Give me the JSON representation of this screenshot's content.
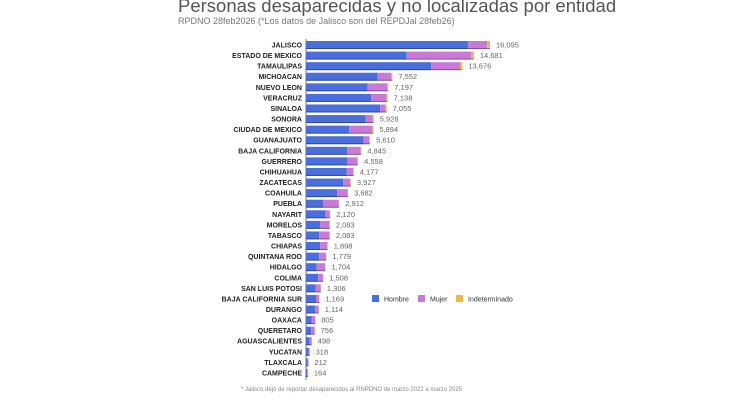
{
  "chart_data": {
    "type": "bar",
    "orientation": "horizontal",
    "stacked": true,
    "title": "Personas desaparecidas y no localizadas por entidad",
    "subtitle": "RPDNO 28feb2026 (*Los datos de Jalisco son del REPDJal 28feb26)",
    "footnote": "* Jalisco dejó de reportar desaparecidos al RNPDNO de marzo 2022 a marzo 2025",
    "legend_position": "right-middle",
    "xlim": [
      0,
      16095
    ],
    "categories": [
      "JALISCO",
      "ESTADO DE MEXICO",
      "TAMAULIPAS",
      "MICHOACAN",
      "NUEVO LEON",
      "VERACRUZ",
      "SINALOA",
      "SONORA",
      "CIUDAD DE MEXICO",
      "GUANAJUATO",
      "BAJA CALIFORNIA",
      "GUERRERO",
      "CHIHUAHUA",
      "ZACATECAS",
      "COAHUILA",
      "PUEBLA",
      "NAYARIT",
      "MORELOS",
      "TABASCO",
      "CHIAPAS",
      "QUINTANA ROO",
      "HIDALGO",
      "COLIMA",
      "SAN LUIS POTOSI",
      "BAJA CALIFORNIA SUR",
      "DURANGO",
      "OAXACA",
      "QUERETARO",
      "AGUASCALIENTES",
      "YUCATAN",
      "TLAXCALA",
      "CAMPECHE"
    ],
    "totals": [
      16095,
      14681,
      13676,
      7552,
      7197,
      7138,
      7055,
      5928,
      5894,
      5610,
      4845,
      4558,
      4177,
      3927,
      3682,
      2912,
      2120,
      2083,
      2083,
      1898,
      1779,
      1704,
      1508,
      1306,
      1169,
      1114,
      805,
      756,
      498,
      318,
      212,
      164
    ],
    "total_labels": [
      "16,095",
      "14,681",
      "13,676",
      "7,552",
      "7,197",
      "7,138",
      "7,055",
      "5,928",
      "5,894",
      "5,610",
      "4,845",
      "4,558",
      "4,177",
      "3,927",
      "3,682",
      "2,912",
      "2,120",
      "2,083",
      "2,083",
      "1,898",
      "1,779",
      "1,704",
      "1,508",
      "1,306",
      "1,169",
      "1,114",
      "805",
      "756",
      "498",
      "318",
      "212",
      "164"
    ],
    "series": [
      {
        "name": "Hombre",
        "color": "#4a6fdc",
        "values": [
          14164,
          8809,
          10941,
          6268,
          5398,
          5710,
          6491,
          5217,
          3772,
          5049,
          3585,
          3646,
          3550,
          3259,
          2725,
          1514,
          1696,
          1250,
          1146,
          1234,
          1156,
          937,
          1056,
          849,
          877,
          802,
          483,
          454,
          299,
          223,
          127,
          98
        ]
      },
      {
        "name": "Mujer",
        "color": "#c97ad9",
        "values": [
          1690,
          5652,
          2530,
          1171,
          1691,
          1321,
          458,
          622,
          2034,
          477,
          1187,
          844,
          564,
          609,
          902,
          1354,
          392,
          802,
          906,
          636,
          596,
          741,
          429,
          437,
          274,
          295,
          310,
          291,
          192,
          90,
          82,
          64
        ]
      },
      {
        "name": "Indeterminado",
        "color": "#f1b944",
        "values": [
          241,
          220,
          205,
          113,
          108,
          107,
          106,
          89,
          88,
          84,
          73,
          68,
          63,
          59,
          55,
          44,
          32,
          31,
          31,
          28,
          27,
          26,
          23,
          20,
          18,
          17,
          12,
          11,
          7,
          5,
          3,
          2
        ]
      }
    ]
  }
}
